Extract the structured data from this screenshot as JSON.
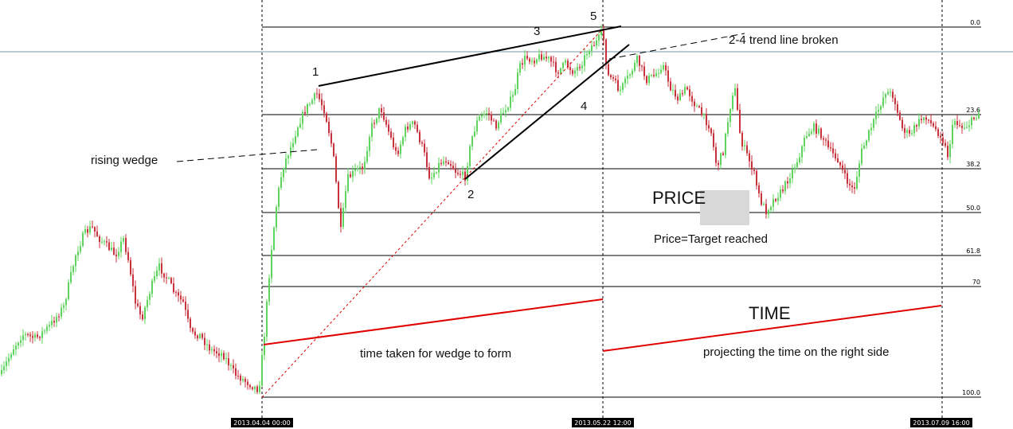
{
  "chart_data": {
    "type": "candlestick",
    "colors": {
      "up": "#5ed35e",
      "down": "#c8323c",
      "fib": "#000000",
      "time_line": "#e00000",
      "price_box": "#d8d8d8"
    },
    "fib_levels": [
      {
        "label": "0.0"
      },
      {
        "label": "23.6"
      },
      {
        "label": "38.2"
      },
      {
        "label": "50.0"
      },
      {
        "label": "61.8"
      },
      {
        "label": "70"
      },
      {
        "label": "100.0"
      }
    ],
    "dates": [
      "2013.04.04 00:00",
      "2013.05.22 12:00",
      "2013.07.09 16:00"
    ],
    "wave_labels": [
      "1",
      "2",
      "3",
      "4",
      "5"
    ],
    "annotations": {
      "rising_wedge": "rising wedge",
      "trend_broken": "2-4 trend line broken",
      "price": "PRICE",
      "price_target": "Price=Target reached",
      "time": "TIME",
      "time_taken": "time taken for wedge to form",
      "time_projection": "projecting the time on the right side"
    }
  }
}
